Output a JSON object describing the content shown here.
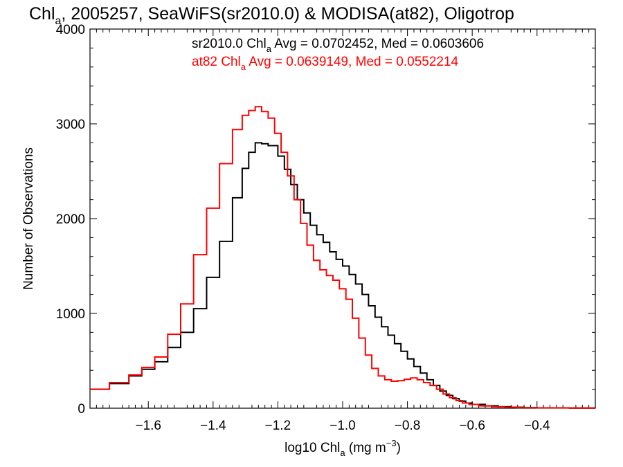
{
  "chart_data": {
    "type": "line",
    "title": {
      "pre": "Chl",
      "sub": "a",
      "post": ", 2005257, SeaWiFS(sr2010.0) & MODISA(at82), Oligotrop"
    },
    "xlabel": {
      "pre": "log10 Chl",
      "sub": "a",
      "mid": " (mg m",
      "sup": "−3",
      "post": ")"
    },
    "ylabel": "Number of Observations",
    "xlim": [
      -1.78,
      -0.22
    ],
    "ylim": [
      0,
      4000
    ],
    "xticks": [
      -1.6,
      -1.4,
      -1.2,
      -1.0,
      -0.8,
      -0.6,
      -0.4
    ],
    "xtick_labels": [
      "−1.6",
      "−1.4",
      "−1.2",
      "−1.0",
      "−0.8",
      "−0.6",
      "−0.4"
    ],
    "yticks": [
      0,
      1000,
      2000,
      3000,
      4000
    ],
    "ytick_labels": [
      "0",
      "1000",
      "2000",
      "3000",
      "4000"
    ],
    "series": [
      {
        "name": "sr2010.0",
        "color": "#000000",
        "stat": {
          "pre": "sr2010.0 Chl",
          "sub": "a",
          "post": " Avg = 0.0702452, Med = 0.0603606"
        },
        "x": [
          -1.78,
          -1.72,
          -1.66,
          -1.62,
          -1.58,
          -1.54,
          -1.5,
          -1.46,
          -1.42,
          -1.38,
          -1.34,
          -1.31,
          -1.29,
          -1.27,
          -1.25,
          -1.23,
          -1.2,
          -1.18,
          -1.16,
          -1.14,
          -1.12,
          -1.1,
          -1.08,
          -1.06,
          -1.04,
          -1.02,
          -1.0,
          -0.98,
          -0.96,
          -0.94,
          -0.92,
          -0.9,
          -0.88,
          -0.86,
          -0.84,
          -0.82,
          -0.8,
          -0.78,
          -0.76,
          -0.74,
          -0.72,
          -0.7,
          -0.68,
          -0.66,
          -0.64,
          -0.62,
          -0.6,
          -0.56,
          -0.52,
          -0.48,
          -0.44,
          -0.4,
          -0.3,
          -0.22
        ],
        "y": [
          200,
          260,
          340,
          410,
          490,
          640,
          800,
          1050,
          1380,
          1760,
          2220,
          2530,
          2700,
          2800,
          2790,
          2770,
          2660,
          2520,
          2360,
          2200,
          2060,
          1930,
          1830,
          1750,
          1650,
          1570,
          1500,
          1410,
          1310,
          1200,
          1080,
          960,
          860,
          770,
          680,
          600,
          520,
          440,
          370,
          300,
          240,
          180,
          135,
          100,
          75,
          55,
          40,
          25,
          15,
          10,
          6,
          4,
          2,
          0
        ]
      },
      {
        "name": "at82",
        "color": "#ff0000",
        "stat": {
          "pre": "at82 Chl",
          "sub": "a",
          "post": " Avg = 0.0639149, Med = 0.0552214"
        },
        "x": [
          -1.78,
          -1.72,
          -1.66,
          -1.62,
          -1.58,
          -1.54,
          -1.5,
          -1.46,
          -1.42,
          -1.38,
          -1.34,
          -1.31,
          -1.29,
          -1.27,
          -1.25,
          -1.23,
          -1.21,
          -1.19,
          -1.17,
          -1.15,
          -1.13,
          -1.11,
          -1.09,
          -1.07,
          -1.05,
          -1.03,
          -1.01,
          -0.99,
          -0.97,
          -0.95,
          -0.93,
          -0.91,
          -0.89,
          -0.87,
          -0.85,
          -0.83,
          -0.81,
          -0.79,
          -0.77,
          -0.75,
          -0.73,
          -0.71,
          -0.69,
          -0.67,
          -0.65,
          -0.63,
          -0.61,
          -0.58,
          -0.54,
          -0.5,
          -0.46,
          -0.4,
          -0.3,
          -0.22
        ],
        "y": [
          200,
          270,
          350,
          430,
          540,
          780,
          1100,
          1620,
          2110,
          2580,
          2940,
          3090,
          3140,
          3180,
          3130,
          3060,
          2900,
          2700,
          2450,
          2200,
          1950,
          1720,
          1560,
          1460,
          1400,
          1350,
          1260,
          1150,
          950,
          740,
          560,
          420,
          340,
          300,
          285,
          290,
          305,
          320,
          300,
          270,
          240,
          200,
          150,
          110,
          80,
          55,
          40,
          25,
          15,
          10,
          6,
          4,
          2,
          0
        ]
      }
    ],
    "grid": false,
    "legend": "top-right"
  }
}
